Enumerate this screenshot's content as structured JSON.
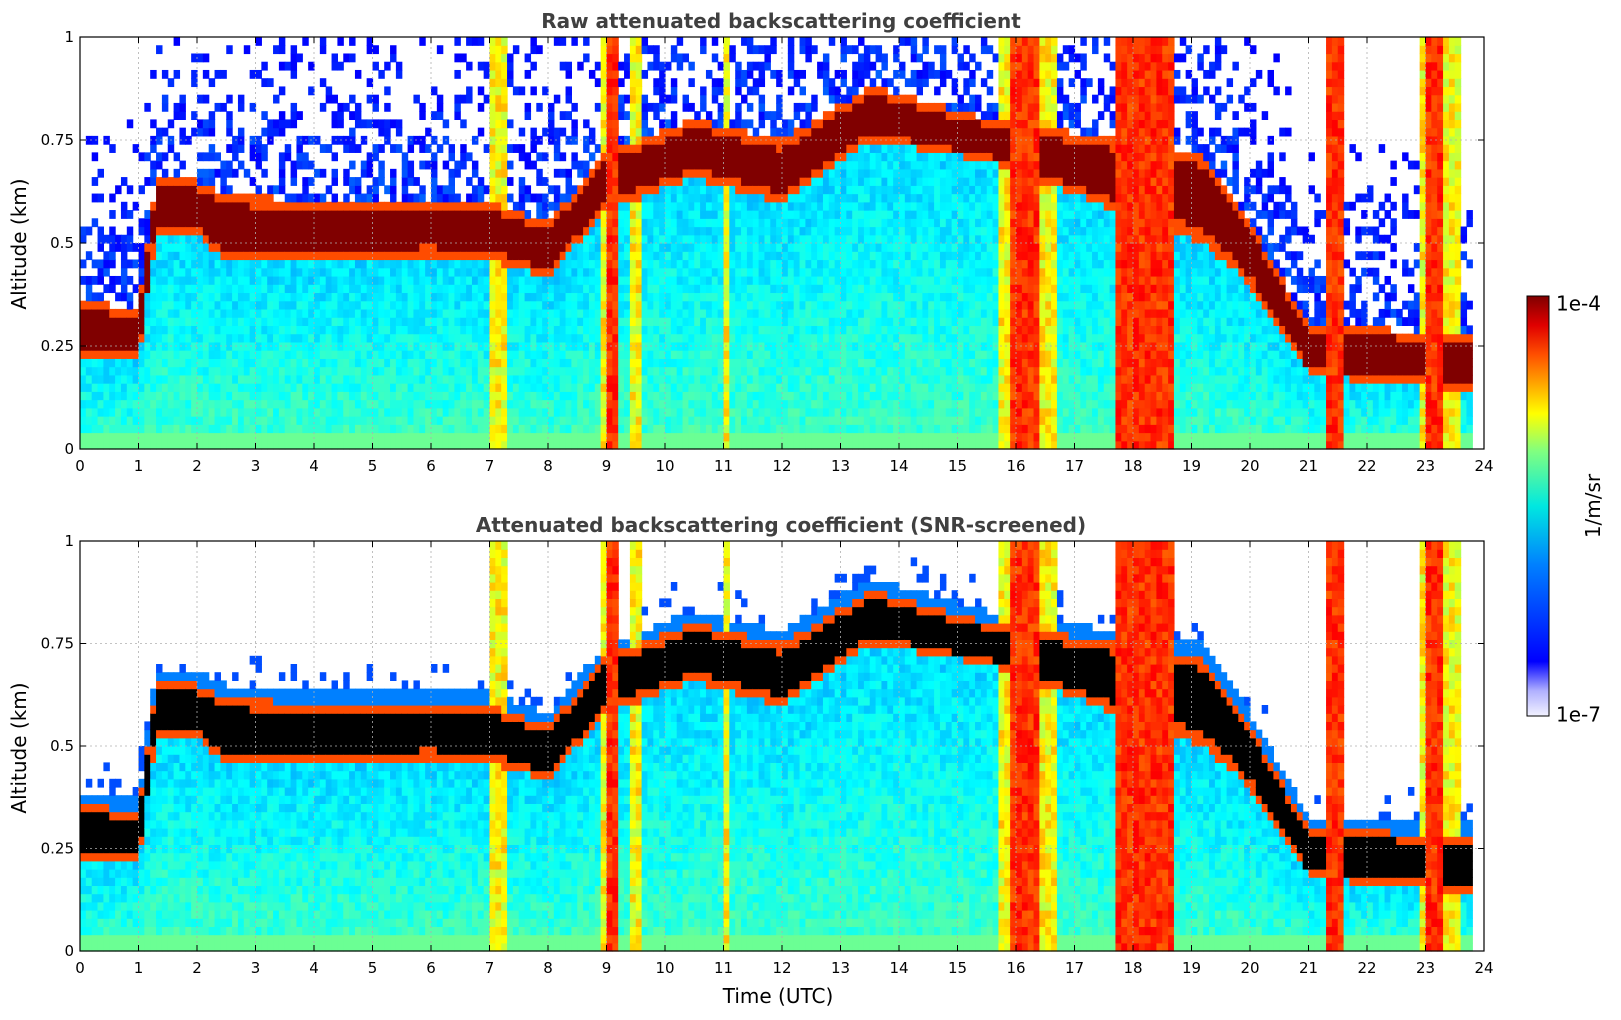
{
  "chart_data": [
    {
      "type": "heatmap",
      "title": "Raw attenuated backscattering coefficient",
      "xlabel": "",
      "ylabel": "Altitude (km)",
      "xlim": [
        0,
        24
      ],
      "ylim": [
        0,
        1
      ],
      "x_ticks": [
        "0",
        "1",
        "2",
        "3",
        "4",
        "5",
        "6",
        "7",
        "8",
        "9",
        "10",
        "11",
        "12",
        "13",
        "14",
        "15",
        "16",
        "17",
        "18",
        "19",
        "20",
        "21",
        "22",
        "23",
        "24"
      ],
      "y_ticks": [
        "0",
        "0.25",
        "0.5",
        "0.75",
        "1"
      ],
      "grid": true,
      "screened": false,
      "cloud_layer": [
        {
          "t": 0.0,
          "base": 0.22,
          "top": 0.36
        },
        {
          "t": 1.0,
          "base": 0.22,
          "top": 0.34
        },
        {
          "t": 1.3,
          "base": 0.52,
          "top": 0.66
        },
        {
          "t": 2.0,
          "base": 0.52,
          "top": 0.65
        },
        {
          "t": 2.5,
          "base": 0.45,
          "top": 0.62
        },
        {
          "t": 4.0,
          "base": 0.46,
          "top": 0.6
        },
        {
          "t": 6.0,
          "base": 0.47,
          "top": 0.61
        },
        {
          "t": 7.0,
          "base": 0.46,
          "top": 0.6
        },
        {
          "t": 8.0,
          "base": 0.42,
          "top": 0.55
        },
        {
          "t": 9.0,
          "base": 0.58,
          "top": 0.72
        },
        {
          "t": 10.5,
          "base": 0.66,
          "top": 0.8
        },
        {
          "t": 12.0,
          "base": 0.6,
          "top": 0.75
        },
        {
          "t": 13.5,
          "base": 0.75,
          "top": 0.88
        },
        {
          "t": 15.5,
          "base": 0.7,
          "top": 0.8
        },
        {
          "t": 19.2,
          "base": 0.5,
          "top": 0.72
        },
        {
          "t": 20.0,
          "base": 0.4,
          "top": 0.55
        },
        {
          "t": 21.0,
          "base": 0.18,
          "top": 0.3
        },
        {
          "t": 23.8,
          "base": 0.14,
          "top": 0.28
        }
      ]
    },
    {
      "type": "heatmap",
      "title": "Attenuated backscattering coefficient (SNR-screened)",
      "xlabel": "Time (UTC)",
      "ylabel": "Altitude (km)",
      "xlim": [
        0,
        24
      ],
      "ylim": [
        0,
        1
      ],
      "x_ticks": [
        "0",
        "1",
        "2",
        "3",
        "4",
        "5",
        "6",
        "7",
        "8",
        "9",
        "10",
        "11",
        "12",
        "13",
        "14",
        "15",
        "16",
        "17",
        "18",
        "19",
        "20",
        "21",
        "22",
        "23",
        "24"
      ],
      "y_ticks": [
        "0",
        "0.25",
        "0.5",
        "0.75",
        "1"
      ],
      "grid": true,
      "screened": true
    }
  ],
  "colorbar": {
    "label": "1/m/sr",
    "max_label": "1e-4",
    "min_label": "1e-7",
    "scale": "log",
    "range": [
      1e-07,
      0.0001
    ],
    "colormap": "jet"
  },
  "colors": {
    "axis": "#000000",
    "grid": "#b0b0b0",
    "title": "#404040",
    "saturated_screened": "#000000"
  }
}
